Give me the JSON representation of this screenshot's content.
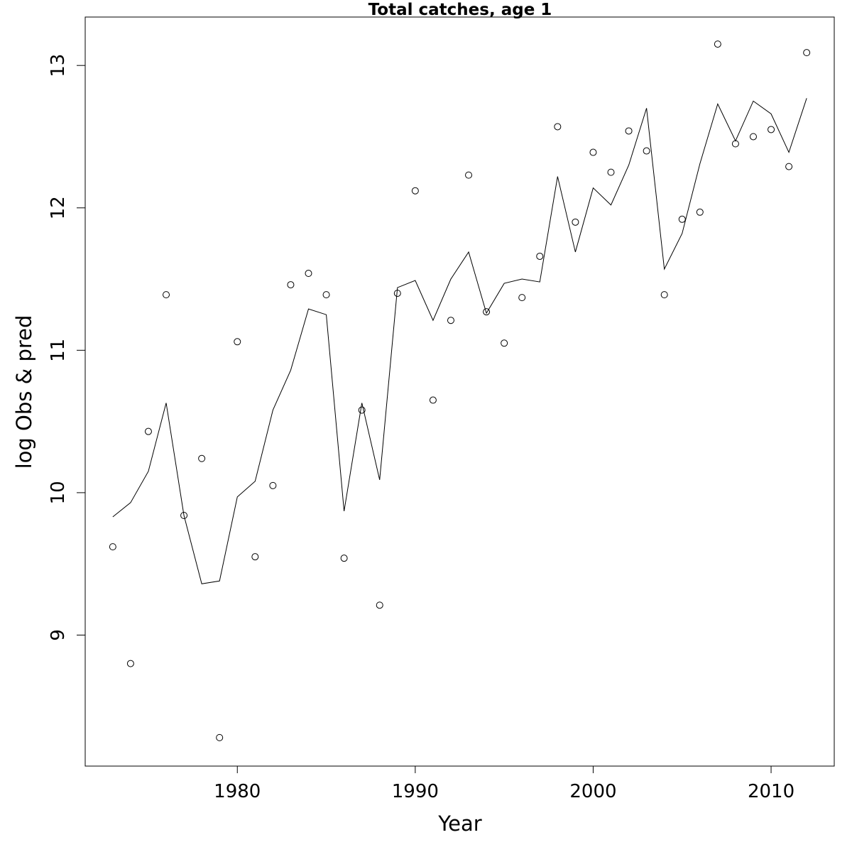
{
  "chart_data": {
    "type": "line",
    "title": "Total catches, age 1",
    "xlabel": "Year",
    "ylabel": "log Obs & pred",
    "xlim": [
      1971.45,
      2013.55
    ],
    "ylim": [
      8.08,
      13.34
    ],
    "x_ticks": [
      1980,
      1990,
      2000,
      2010
    ],
    "y_ticks": [
      9,
      10,
      11,
      12,
      13
    ],
    "grid": false,
    "legend": "none",
    "colors": {
      "line": "#000000",
      "points": "#000000",
      "background": "#ffffff"
    },
    "years": [
      1973,
      1974,
      1975,
      1976,
      1977,
      1978,
      1979,
      1980,
      1981,
      1982,
      1983,
      1984,
      1985,
      1986,
      1987,
      1988,
      1989,
      1990,
      1991,
      1992,
      1993,
      1994,
      1995,
      1996,
      1997,
      1998,
      1999,
      2000,
      2001,
      2002,
      2003,
      2004,
      2005,
      2006,
      2007,
      2008,
      2009,
      2010,
      2011,
      2012
    ],
    "series": [
      {
        "style": "points",
        "values": [
          9.62,
          8.8,
          10.43,
          11.39,
          9.84,
          10.24,
          8.28,
          11.06,
          9.55,
          10.05,
          11.46,
          11.54,
          11.39,
          9.54,
          10.58,
          9.21,
          11.4,
          12.12,
          10.65,
          11.21,
          12.23,
          11.27,
          11.05,
          11.37,
          11.66,
          12.57,
          11.9,
          12.39,
          12.25,
          12.54,
          12.4,
          11.39,
          11.92,
          11.97,
          13.15,
          12.45,
          12.5,
          12.55,
          12.29,
          13.09
        ]
      },
      {
        "style": "line",
        "values": [
          9.83,
          9.93,
          10.15,
          10.63,
          9.84,
          9.36,
          9.38,
          9.97,
          10.08,
          10.58,
          10.86,
          11.29,
          11.25,
          9.87,
          10.63,
          10.09,
          11.44,
          11.49,
          11.21,
          11.5,
          11.69,
          11.26,
          11.47,
          11.5,
          11.48,
          12.22,
          11.69,
          12.14,
          12.02,
          12.3,
          12.7,
          11.57,
          11.82,
          12.31,
          12.73,
          12.47,
          12.75,
          12.66,
          12.39,
          12.77
        ]
      }
    ]
  }
}
